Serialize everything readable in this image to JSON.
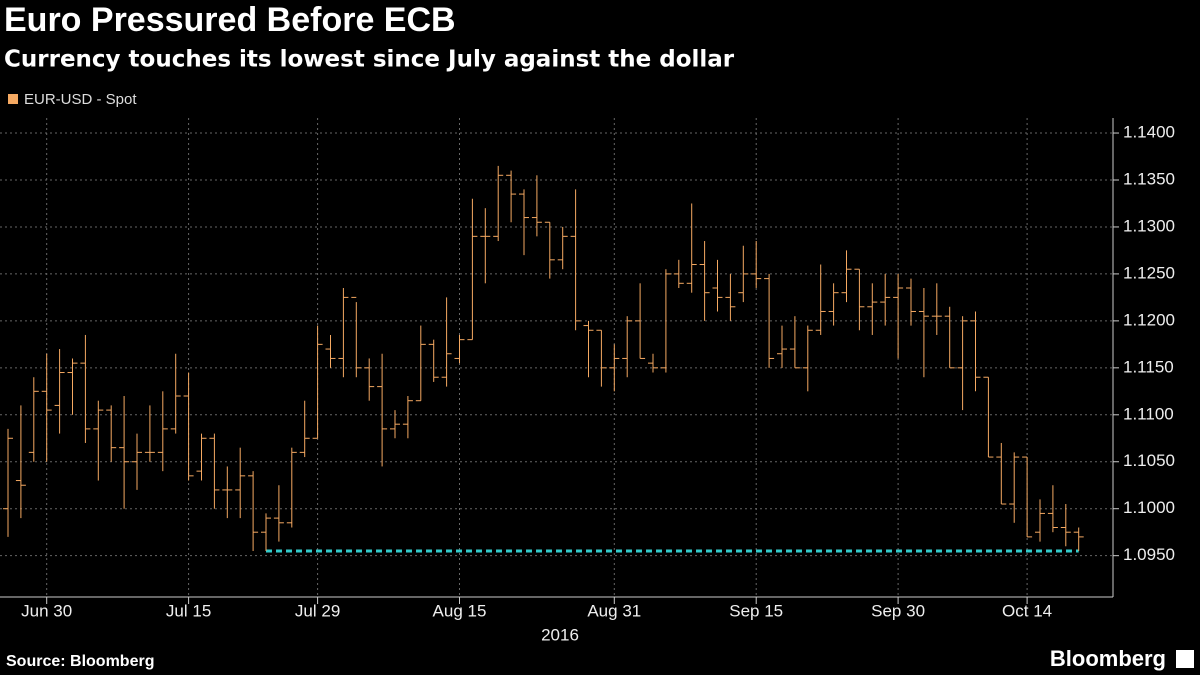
{
  "chart_data": {
    "type": "ohlc",
    "title": "Euro Pressured Before ECB",
    "subtitle": "Currency touches its lowest since July against the dollar",
    "xlabel": "2016",
    "source": "Source: Bloomberg",
    "brand": "Bloomberg",
    "grid": true,
    "x": [
      "2016-06-27",
      "2016-06-28",
      "2016-06-29",
      "2016-06-30",
      "2016-07-01",
      "2016-07-04",
      "2016-07-05",
      "2016-07-06",
      "2016-07-07",
      "2016-07-08",
      "2016-07-11",
      "2016-07-12",
      "2016-07-13",
      "2016-07-14",
      "2016-07-15",
      "2016-07-18",
      "2016-07-19",
      "2016-07-20",
      "2016-07-21",
      "2016-07-22",
      "2016-07-25",
      "2016-07-26",
      "2016-07-27",
      "2016-07-28",
      "2016-07-29",
      "2016-08-01",
      "2016-08-02",
      "2016-08-03",
      "2016-08-04",
      "2016-08-05",
      "2016-08-08",
      "2016-08-09",
      "2016-08-10",
      "2016-08-11",
      "2016-08-12",
      "2016-08-15",
      "2016-08-16",
      "2016-08-17",
      "2016-08-18",
      "2016-08-19",
      "2016-08-22",
      "2016-08-23",
      "2016-08-24",
      "2016-08-25",
      "2016-08-26",
      "2016-08-29",
      "2016-08-30",
      "2016-08-31",
      "2016-09-01",
      "2016-09-02",
      "2016-09-05",
      "2016-09-06",
      "2016-09-07",
      "2016-09-08",
      "2016-09-09",
      "2016-09-12",
      "2016-09-13",
      "2016-09-14",
      "2016-09-15",
      "2016-09-16",
      "2016-09-19",
      "2016-09-20",
      "2016-09-21",
      "2016-09-22",
      "2016-09-23",
      "2016-09-26",
      "2016-09-27",
      "2016-09-28",
      "2016-09-29",
      "2016-09-30",
      "2016-10-03",
      "2016-10-04",
      "2016-10-05",
      "2016-10-06",
      "2016-10-07",
      "2016-10-10",
      "2016-10-11",
      "2016-10-12",
      "2016-10-13",
      "2016-10-14",
      "2016-10-17",
      "2016-10-18",
      "2016-10-19",
      "2016-10-20"
    ],
    "series": [
      {
        "name": "EUR-USD - Spot",
        "color": "#f5a962",
        "open": [
          1.1,
          1.103,
          1.106,
          1.1125,
          1.111,
          1.1145,
          1.1155,
          1.1085,
          1.1105,
          1.1065,
          1.105,
          1.106,
          1.106,
          1.1085,
          1.112,
          1.104,
          1.1075,
          1.102,
          1.102,
          1.1035,
          1.0975,
          1.099,
          1.0985,
          1.106,
          1.1075,
          1.117,
          1.116,
          1.1225,
          1.115,
          1.113,
          1.1085,
          1.109,
          1.1115,
          1.1175,
          1.114,
          1.116,
          1.118,
          1.129,
          1.129,
          1.1355,
          1.1335,
          1.131,
          1.1305,
          1.1265,
          1.129,
          1.1195,
          1.119,
          1.115,
          1.116,
          1.12,
          1.1155,
          1.115,
          1.125,
          1.124,
          1.126,
          1.1235,
          1.1225,
          1.123,
          1.125,
          1.1245,
          1.1165,
          1.117,
          1.115,
          1.119,
          1.121,
          1.123,
          1.1255,
          1.1215,
          1.122,
          1.1225,
          1.1235,
          1.121,
          1.1205,
          1.1205,
          1.115,
          1.12,
          1.114,
          1.1055,
          1.1005,
          1.1055,
          1.0975,
          1.0995,
          1.098,
          1.0975
        ],
        "high": [
          1.1085,
          1.111,
          1.114,
          1.1165,
          1.117,
          1.116,
          1.1185,
          1.1115,
          1.111,
          1.112,
          1.108,
          1.111,
          1.1125,
          1.1165,
          1.1145,
          1.108,
          1.108,
          1.1045,
          1.1065,
          1.104,
          1.0995,
          1.1025,
          1.1065,
          1.1115,
          1.1195,
          1.1185,
          1.1235,
          1.122,
          1.116,
          1.1165,
          1.1105,
          1.112,
          1.1195,
          1.118,
          1.1225,
          1.1185,
          1.133,
          1.132,
          1.1365,
          1.136,
          1.134,
          1.1355,
          1.1305,
          1.13,
          1.134,
          1.12,
          1.119,
          1.1175,
          1.1205,
          1.124,
          1.1165,
          1.1255,
          1.1265,
          1.1325,
          1.1285,
          1.1265,
          1.125,
          1.128,
          1.1285,
          1.125,
          1.1195,
          1.1205,
          1.1195,
          1.126,
          1.124,
          1.1275,
          1.1255,
          1.124,
          1.125,
          1.125,
          1.1245,
          1.1235,
          1.124,
          1.1215,
          1.1205,
          1.121,
          1.114,
          1.107,
          1.106,
          1.1055,
          1.101,
          1.1025,
          1.1005,
          1.098
        ],
        "low": [
          1.097,
          1.099,
          1.105,
          1.105,
          1.108,
          1.11,
          1.107,
          1.103,
          1.105,
          1.1,
          1.102,
          1.105,
          1.104,
          1.108,
          1.103,
          1.103,
          1.1,
          1.099,
          1.099,
          1.0955,
          1.0955,
          1.0965,
          1.098,
          1.1055,
          1.1075,
          1.115,
          1.114,
          1.114,
          1.1115,
          1.1045,
          1.1075,
          1.1075,
          1.1115,
          1.1135,
          1.113,
          1.1155,
          1.118,
          1.124,
          1.1285,
          1.1305,
          1.127,
          1.129,
          1.1245,
          1.1255,
          1.119,
          1.114,
          1.113,
          1.1125,
          1.114,
          1.116,
          1.1145,
          1.1145,
          1.1235,
          1.123,
          1.12,
          1.121,
          1.12,
          1.122,
          1.1235,
          1.115,
          1.115,
          1.115,
          1.1125,
          1.1185,
          1.1195,
          1.122,
          1.119,
          1.1185,
          1.1195,
          1.116,
          1.1195,
          1.114,
          1.1185,
          1.115,
          1.1105,
          1.1125,
          1.1055,
          1.1005,
          1.0985,
          1.097,
          1.0965,
          1.0975,
          1.096,
          1.0955
        ],
        "close": [
          1.1075,
          1.1025,
          1.1125,
          1.1105,
          1.1145,
          1.1155,
          1.1085,
          1.1105,
          1.1065,
          1.105,
          1.106,
          1.106,
          1.1085,
          1.112,
          1.1035,
          1.1075,
          1.102,
          1.102,
          1.1035,
          1.0975,
          1.099,
          1.0985,
          1.106,
          1.1075,
          1.1175,
          1.116,
          1.1225,
          1.115,
          1.113,
          1.1085,
          1.109,
          1.1115,
          1.1175,
          1.114,
          1.1165,
          1.118,
          1.129,
          1.129,
          1.1355,
          1.1335,
          1.131,
          1.1305,
          1.1265,
          1.129,
          1.12,
          1.119,
          1.115,
          1.116,
          1.12,
          1.116,
          1.115,
          1.125,
          1.124,
          1.126,
          1.123,
          1.1225,
          1.1215,
          1.125,
          1.1245,
          1.116,
          1.117,
          1.115,
          1.119,
          1.121,
          1.123,
          1.1255,
          1.1215,
          1.122,
          1.1225,
          1.1235,
          1.121,
          1.1205,
          1.1205,
          1.115,
          1.12,
          1.114,
          1.1055,
          1.1005,
          1.1055,
          1.097,
          1.0995,
          1.098,
          1.0975,
          1.097
        ]
      }
    ],
    "reference_line": {
      "value": 1.0955,
      "from": "2016-07-25",
      "to": "2016-10-20",
      "color": "#33cccc"
    },
    "ylim": [
      1.0906,
      1.1416
    ],
    "yticks": [
      {
        "value": 1.095,
        "label": "1.0950"
      },
      {
        "value": 1.1,
        "label": "1.1000"
      },
      {
        "value": 1.105,
        "label": "1.1050"
      },
      {
        "value": 1.11,
        "label": "1.1100"
      },
      {
        "value": 1.115,
        "label": "1.1150"
      },
      {
        "value": 1.12,
        "label": "1.1200"
      },
      {
        "value": 1.125,
        "label": "1.1250"
      },
      {
        "value": 1.13,
        "label": "1.1300"
      },
      {
        "value": 1.135,
        "label": "1.1350"
      },
      {
        "value": 1.14,
        "label": "1.1400"
      }
    ],
    "xticks": [
      {
        "value": "2016-06-30",
        "label": "Jun 30"
      },
      {
        "value": "2016-07-15",
        "label": "Jul 15"
      },
      {
        "value": "2016-07-29",
        "label": "Jul 29"
      },
      {
        "value": "2016-08-15",
        "label": "Aug 15"
      },
      {
        "value": "2016-08-31",
        "label": "Aug 31"
      },
      {
        "value": "2016-09-15",
        "label": "Sep 15"
      },
      {
        "value": "2016-09-30",
        "label": "Sep 30"
      },
      {
        "value": "2016-10-14",
        "label": "Oct 14"
      }
    ]
  }
}
